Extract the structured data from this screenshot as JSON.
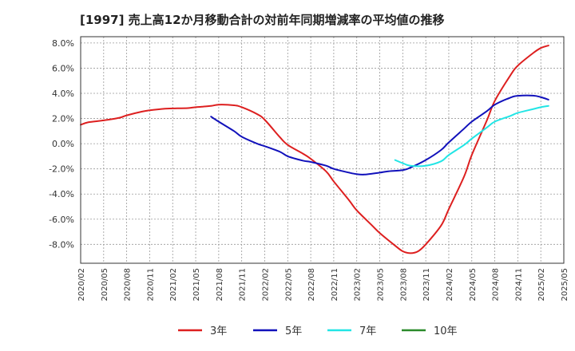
{
  "chart_data": {
    "type": "line",
    "title": "[1997]  売上高12か月移動合計の対前年同期増減率の平均値の推移",
    "xlabel": "",
    "ylabel": "",
    "x_ticks": [
      "2020/02",
      "2020/05",
      "2020/08",
      "2020/11",
      "2021/02",
      "2021/05",
      "2021/08",
      "2021/11",
      "2022/02",
      "2022/05",
      "2022/08",
      "2022/11",
      "2023/02",
      "2023/05",
      "2023/08",
      "2023/11",
      "2024/02",
      "2024/05",
      "2024/08",
      "2024/11",
      "2025/02",
      "2025/05"
    ],
    "y_ticks": [
      "8.0%",
      "6.0%",
      "4.0%",
      "2.0%",
      "0.0%",
      "-2.0%",
      "-4.0%",
      "-6.0%",
      "-8.0%"
    ],
    "ylim": [
      -9.5,
      8.5
    ],
    "grid": true,
    "legend_position": "bottom",
    "series": [
      {
        "name": "3年",
        "color": "#dd1f1f",
        "points": [
          [
            "2020/02",
            1.5
          ],
          [
            "2020/03",
            1.7
          ],
          [
            "2020/05",
            1.85
          ],
          [
            "2020/07",
            2.05
          ],
          [
            "2020/08",
            2.25
          ],
          [
            "2020/10",
            2.55
          ],
          [
            "2020/11",
            2.65
          ],
          [
            "2021/01",
            2.78
          ],
          [
            "2021/02",
            2.8
          ],
          [
            "2021/04",
            2.83
          ],
          [
            "2021/05",
            2.9
          ],
          [
            "2021/07",
            3.0
          ],
          [
            "2021/08",
            3.1
          ],
          [
            "2021/10",
            3.05
          ],
          [
            "2021/11",
            2.9
          ],
          [
            "2022/01",
            2.35
          ],
          [
            "2022/02",
            1.9
          ],
          [
            "2022/04",
            0.5
          ],
          [
            "2022/05",
            -0.1
          ],
          [
            "2022/07",
            -0.8
          ],
          [
            "2022/08",
            -1.2
          ],
          [
            "2022/10",
            -2.2
          ],
          [
            "2022/11",
            -3.0
          ],
          [
            "2023/01",
            -4.5
          ],
          [
            "2023/02",
            -5.3
          ],
          [
            "2023/04",
            -6.5
          ],
          [
            "2023/05",
            -7.1
          ],
          [
            "2023/07",
            -8.1
          ],
          [
            "2023/08",
            -8.55
          ],
          [
            "2023/09",
            -8.7
          ],
          [
            "2023/10",
            -8.55
          ],
          [
            "2023/11",
            -8.0
          ],
          [
            "2024/01",
            -6.5
          ],
          [
            "2024/02",
            -5.2
          ],
          [
            "2024/04",
            -2.6
          ],
          [
            "2024/05",
            -0.9
          ],
          [
            "2024/07",
            1.9
          ],
          [
            "2024/08",
            3.4
          ],
          [
            "2024/10",
            5.4
          ],
          [
            "2024/11",
            6.2
          ],
          [
            "2025/01",
            7.2
          ],
          [
            "2025/02",
            7.6
          ],
          [
            "2025/03",
            7.8
          ]
        ]
      },
      {
        "name": "5年",
        "color": "#1111bb",
        "points": [
          [
            "2021/07",
            2.15
          ],
          [
            "2021/08",
            1.75
          ],
          [
            "2021/10",
            1.0
          ],
          [
            "2021/11",
            0.55
          ],
          [
            "2022/01",
            0.0
          ],
          [
            "2022/02",
            -0.2
          ],
          [
            "2022/04",
            -0.65
          ],
          [
            "2022/05",
            -1.0
          ],
          [
            "2022/07",
            -1.35
          ],
          [
            "2022/08",
            -1.45
          ],
          [
            "2022/10",
            -1.75
          ],
          [
            "2022/11",
            -2.0
          ],
          [
            "2023/01",
            -2.3
          ],
          [
            "2023/02",
            -2.42
          ],
          [
            "2023/03",
            -2.45
          ],
          [
            "2023/05",
            -2.3
          ],
          [
            "2023/06",
            -2.2
          ],
          [
            "2023/08",
            -2.1
          ],
          [
            "2023/09",
            -1.9
          ],
          [
            "2023/11",
            -1.3
          ],
          [
            "2024/01",
            -0.5
          ],
          [
            "2024/02",
            0.1
          ],
          [
            "2024/04",
            1.2
          ],
          [
            "2024/05",
            1.75
          ],
          [
            "2024/07",
            2.6
          ],
          [
            "2024/08",
            3.1
          ],
          [
            "2024/10",
            3.65
          ],
          [
            "2024/11",
            3.8
          ],
          [
            "2025/01",
            3.82
          ],
          [
            "2025/02",
            3.7
          ],
          [
            "2025/03",
            3.5
          ]
        ]
      },
      {
        "name": "7年",
        "color": "#22e5e5",
        "points": [
          [
            "2023/07",
            -1.3
          ],
          [
            "2023/08",
            -1.55
          ],
          [
            "2023/09",
            -1.75
          ],
          [
            "2023/11",
            -1.75
          ],
          [
            "2024/01",
            -1.4
          ],
          [
            "2024/02",
            -0.9
          ],
          [
            "2024/04",
            -0.1
          ],
          [
            "2024/05",
            0.4
          ],
          [
            "2024/07",
            1.3
          ],
          [
            "2024/08",
            1.75
          ],
          [
            "2024/10",
            2.2
          ],
          [
            "2024/11",
            2.45
          ],
          [
            "2025/01",
            2.75
          ],
          [
            "2025/02",
            2.9
          ],
          [
            "2025/03",
            3.0
          ]
        ]
      },
      {
        "name": "10年",
        "color": "#2a8a2a",
        "points": []
      }
    ]
  }
}
